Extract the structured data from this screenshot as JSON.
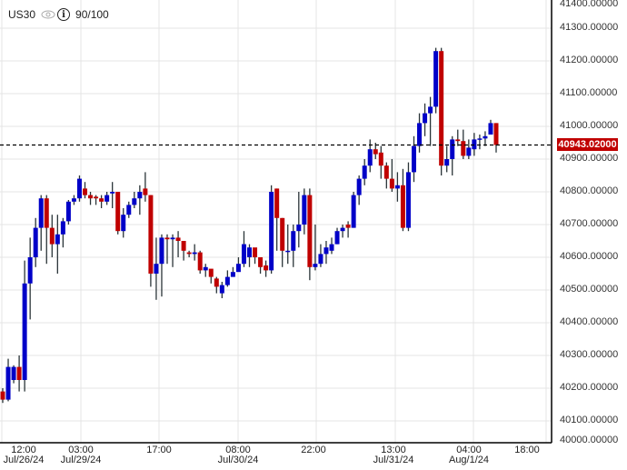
{
  "header": {
    "symbol": "US30",
    "eye_icon": "eye-icon",
    "info_icon": "info-icon",
    "info_glyph": "i",
    "score": "90/100"
  },
  "current_price_label": "40943.02000",
  "colors": {
    "bull": "#0000c8",
    "bear": "#c00000",
    "wick": "#2a3438",
    "grid": "#e4e4e4",
    "axis": "#000000",
    "price_tag": "#c00000"
  },
  "chart_data": {
    "type": "candlestick",
    "title": "US30",
    "xlabel": "",
    "ylabel": "",
    "ylim": [
      40000,
      41400
    ],
    "y_ticks": [
      "41400.00000",
      "41300.00000",
      "41200.00000",
      "41100.00000",
      "41000.00000",
      "40900.00000",
      "40800.00000",
      "40700.00000",
      "40600.00000",
      "40500.00000",
      "40400.00000",
      "40300.00000",
      "40200.00000",
      "40100.00000",
      "40000.00000"
    ],
    "x_ticks": [
      {
        "time": "12:00",
        "date": "Jul/26/24"
      },
      {
        "time": "03:00",
        "date": "Jul/29/24"
      },
      {
        "time": "17:00",
        "date": ""
      },
      {
        "time": "08:00",
        "date": "Jul/30/24"
      },
      {
        "time": "22:00",
        "date": ""
      },
      {
        "time": "13:00",
        "date": "Jul/31/24"
      },
      {
        "time": "04:00",
        "date": "Aug/1/24"
      },
      {
        "time": "18:00",
        "date": ""
      }
    ],
    "current_price": 40943.02,
    "grid": true,
    "candles": [
      [
        40190,
        40165,
        40200,
        40155
      ],
      [
        40165,
        40265,
        40290,
        40160
      ],
      [
        40225,
        40265,
        40270,
        40215
      ],
      [
        40265,
        40225,
        40300,
        40190
      ],
      [
        40225,
        40520,
        40590,
        40190
      ],
      [
        40520,
        40600,
        40660,
        40410
      ],
      [
        40600,
        40690,
        40720,
        40570
      ],
      [
        40690,
        40780,
        40790,
        40620
      ],
      [
        40780,
        40690,
        40790,
        40580
      ],
      [
        40690,
        40640,
        40730,
        40600
      ],
      [
        40640,
        40670,
        40730,
        40550
      ],
      [
        40670,
        40710,
        40720,
        40630
      ],
      [
        40710,
        40770,
        40775,
        40700
      ],
      [
        40770,
        40780,
        40790,
        40760
      ],
      [
        40780,
        40840,
        40850,
        40770
      ],
      [
        40810,
        40790,
        40830,
        40780
      ],
      [
        40790,
        40780,
        40800,
        40760
      ],
      [
        40785,
        40780,
        40790,
        40760
      ],
      [
        40780,
        40770,
        40790,
        40750
      ],
      [
        40770,
        40790,
        40800,
        40760
      ],
      [
        40795,
        40800,
        40830,
        40750
      ],
      [
        40800,
        40680,
        40800,
        40670
      ],
      [
        40680,
        40730,
        40750,
        40660
      ],
      [
        40730,
        40760,
        40770,
        40720
      ],
      [
        40760,
        40780,
        40800,
        40750
      ],
      [
        40780,
        40800,
        40820,
        40730
      ],
      [
        40810,
        40790,
        40860,
        40770
      ],
      [
        40790,
        40550,
        40790,
        40510
      ],
      [
        40550,
        40580,
        40660,
        40470
      ],
      [
        40580,
        40660,
        40670,
        40480
      ],
      [
        40660,
        40655,
        40670,
        40580
      ],
      [
        40655,
        40660,
        40670,
        40570
      ],
      [
        40660,
        40650,
        40680,
        40600
      ],
      [
        40650,
        40620,
        40640,
        40590
      ],
      [
        40615,
        40610,
        40620,
        40600
      ],
      [
        40610,
        40615,
        40640,
        40590
      ],
      [
        40615,
        40560,
        40620,
        40550
      ],
      [
        40560,
        40570,
        40580,
        40540
      ],
      [
        40565,
        40540,
        40560,
        40520
      ],
      [
        40535,
        40510,
        40540,
        40490
      ],
      [
        40490,
        40515,
        40525,
        40475
      ],
      [
        40515,
        40540,
        40560,
        40510
      ],
      [
        40540,
        40555,
        40570,
        40540
      ],
      [
        40555,
        40580,
        40600,
        40560
      ],
      [
        40580,
        40640,
        40680,
        40570
      ],
      [
        40600,
        40630,
        40640,
        40570
      ],
      [
        40630,
        40600,
        40620,
        40580
      ],
      [
        40600,
        40570,
        40590,
        40550
      ],
      [
        40575,
        40560,
        40590,
        40540
      ],
      [
        40560,
        40800,
        40820,
        40550
      ],
      [
        40810,
        40720,
        40810,
        40620
      ],
      [
        40720,
        40620,
        40720,
        40570
      ],
      [
        40620,
        40620,
        40700,
        40580
      ],
      [
        40620,
        40680,
        40700,
        40570
      ],
      [
        40680,
        40700,
        40800,
        40630
      ],
      [
        40700,
        40790,
        40810,
        40670
      ],
      [
        40790,
        40570,
        40810,
        40530
      ],
      [
        40570,
        40580,
        40700,
        40560
      ],
      [
        40580,
        40610,
        40640,
        40570
      ],
      [
        40610,
        40630,
        40650,
        40580
      ],
      [
        40620,
        40640,
        40660,
        40610
      ],
      [
        40640,
        40680,
        40690,
        40640
      ],
      [
        40680,
        40690,
        40700,
        40660
      ],
      [
        40700,
        40690,
        40710,
        40660
      ],
      [
        40690,
        40790,
        40800,
        40690
      ],
      [
        40790,
        40840,
        40850,
        40760
      ],
      [
        40840,
        40880,
        40900,
        40820
      ],
      [
        40880,
        40930,
        40960,
        40860
      ],
      [
        40930,
        40915,
        40950,
        40900
      ],
      [
        40920,
        40880,
        40940,
        40840
      ],
      [
        40880,
        40840,
        40890,
        40810
      ],
      [
        40840,
        40810,
        40900,
        40800
      ],
      [
        40810,
        40820,
        40860,
        40770
      ],
      [
        40820,
        40690,
        40870,
        40680
      ],
      [
        40690,
        40860,
        40890,
        40680
      ],
      [
        40860,
        40940,
        40970,
        40830
      ],
      [
        40940,
        41010,
        41040,
        40920
      ],
      [
        41010,
        41040,
        41070,
        40970
      ],
      [
        41040,
        41060,
        41090,
        40940
      ],
      [
        41060,
        41230,
        41240,
        41040
      ],
      [
        41230,
        40880,
        41240,
        40850
      ],
      [
        40880,
        40900,
        40940,
        40860
      ],
      [
        40900,
        40960,
        40970,
        40850
      ],
      [
        40960,
        40955,
        40990,
        40940
      ],
      [
        40955,
        40910,
        40990,
        40900
      ],
      [
        40910,
        40935,
        40960,
        40900
      ],
      [
        40930,
        40960,
        40980,
        40910
      ],
      [
        40960,
        40963,
        40975,
        40930
      ],
      [
        40963,
        40970,
        40985,
        40940
      ],
      [
        40975,
        41010,
        41020,
        40980
      ],
      [
        41010,
        40943,
        41010,
        40920
      ]
    ]
  }
}
